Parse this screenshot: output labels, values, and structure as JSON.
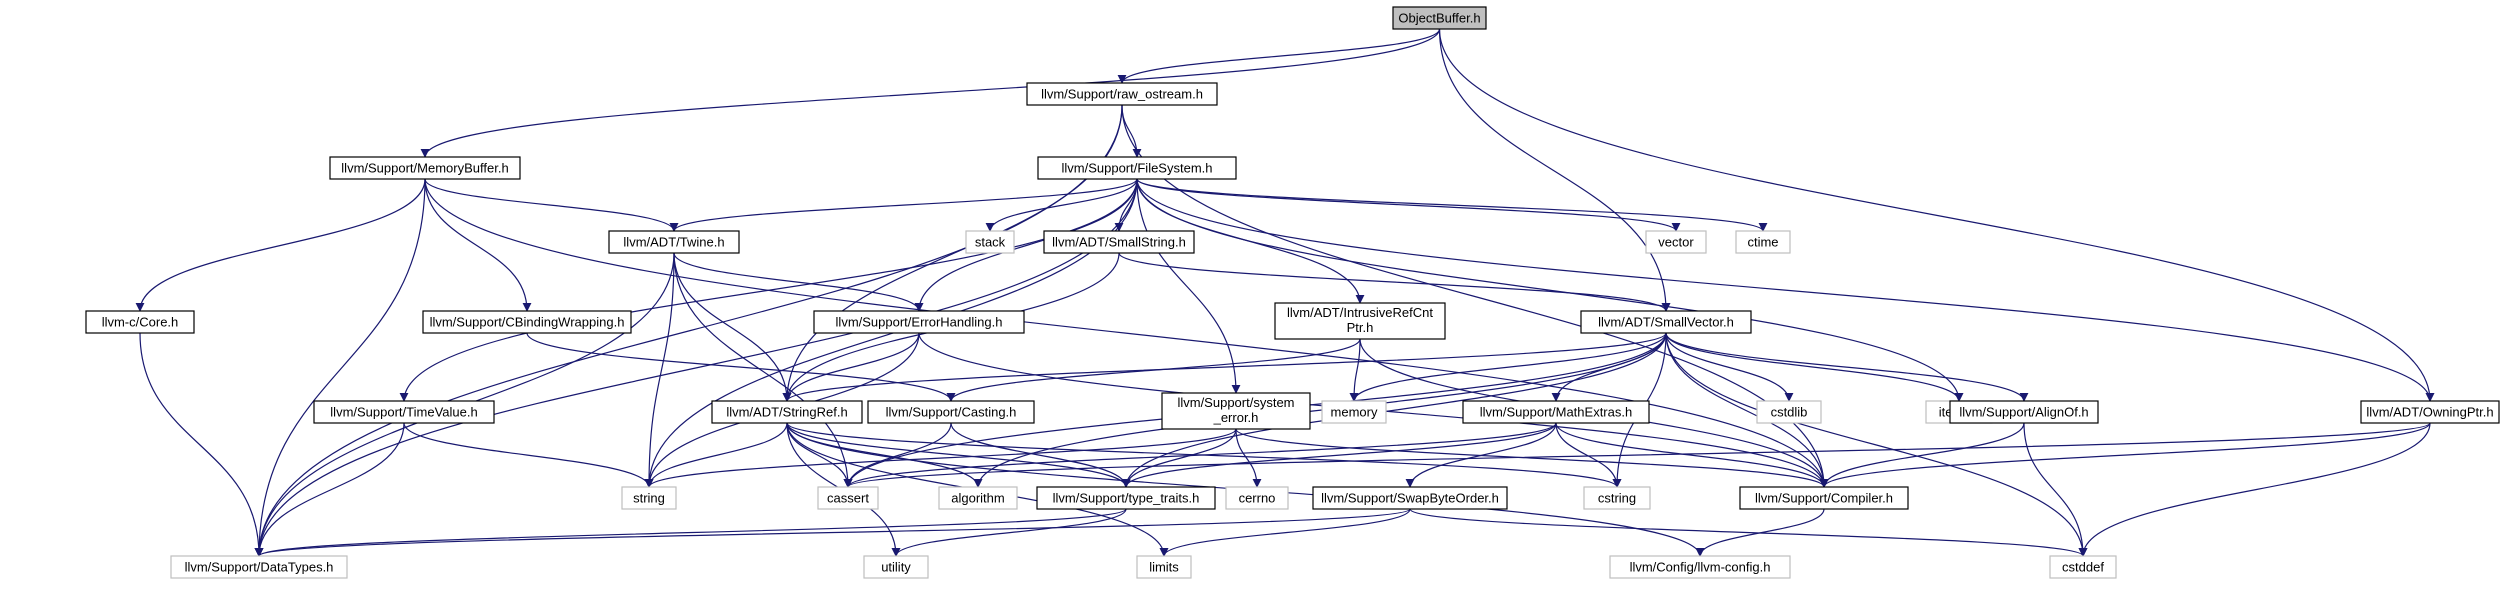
{
  "diagram": {
    "colors": {
      "edge": "#191970",
      "root_fill": "#bfbfbf",
      "node_fill": "#ffffff",
      "internal_border": "#000000",
      "external_border": "#bfbfbf"
    },
    "nodes": [
      {
        "id": "n0",
        "label": "ObjectBuffer.h",
        "kind": "root"
      },
      {
        "id": "n1",
        "label": "llvm/Support/raw_ostream.h",
        "kind": "internal"
      },
      {
        "id": "n2",
        "label": "llvm/Support/MemoryBuffer.h",
        "kind": "internal"
      },
      {
        "id": "n3",
        "label": "llvm/Support/FileSystem.h",
        "kind": "internal"
      },
      {
        "id": "n4",
        "label": "llvm/ADT/Twine.h",
        "kind": "internal"
      },
      {
        "id": "n5",
        "label": "stack",
        "kind": "external"
      },
      {
        "id": "n6",
        "label": "llvm/ADT/SmallString.h",
        "kind": "internal"
      },
      {
        "id": "n7",
        "label": "vector",
        "kind": "external"
      },
      {
        "id": "n8",
        "label": "ctime",
        "kind": "external"
      },
      {
        "id": "n9",
        "label": "llvm-c/Core.h",
        "kind": "internal"
      },
      {
        "id": "n10",
        "label": "llvm/Support/CBindingWrapping.h",
        "kind": "internal"
      },
      {
        "id": "n11",
        "label": "llvm/Support/ErrorHandling.h",
        "kind": "internal"
      },
      {
        "id": "n12",
        "label": "llvm/ADT/IntrusiveRefCnt Ptr.h",
        "kind": "internal"
      },
      {
        "id": "n13",
        "label": "llvm/ADT/SmallVector.h",
        "kind": "internal"
      },
      {
        "id": "n14",
        "label": "memory",
        "kind": "external"
      },
      {
        "id": "n15",
        "label": "cstdlib",
        "kind": "external"
      },
      {
        "id": "n16",
        "label": "iterator",
        "kind": "external"
      },
      {
        "id": "n17",
        "label": "llvm/Support/TimeValue.h",
        "kind": "internal"
      },
      {
        "id": "n18",
        "label": "llvm/ADT/StringRef.h",
        "kind": "internal"
      },
      {
        "id": "n19",
        "label": "llvm/Support/Casting.h",
        "kind": "internal"
      },
      {
        "id": "n20",
        "label": "llvm/Support/system _error.h",
        "kind": "internal"
      },
      {
        "id": "n21",
        "label": "llvm/Support/MathExtras.h",
        "kind": "internal"
      },
      {
        "id": "n22",
        "label": "llvm/Support/AlignOf.h",
        "kind": "internal"
      },
      {
        "id": "n23",
        "label": "llvm/ADT/OwningPtr.h",
        "kind": "internal"
      },
      {
        "id": "n24",
        "label": "string",
        "kind": "external"
      },
      {
        "id": "n25",
        "label": "cassert",
        "kind": "external"
      },
      {
        "id": "n26",
        "label": "algorithm",
        "kind": "external"
      },
      {
        "id": "n27",
        "label": "llvm/Support/type_traits.h",
        "kind": "internal"
      },
      {
        "id": "n28",
        "label": "cerrno",
        "kind": "external"
      },
      {
        "id": "n29",
        "label": "llvm/Support/SwapByteOrder.h",
        "kind": "internal"
      },
      {
        "id": "n30",
        "label": "cstring",
        "kind": "external"
      },
      {
        "id": "n31",
        "label": "llvm/Support/Compiler.h",
        "kind": "internal"
      },
      {
        "id": "n32",
        "label": "llvm/Support/DataTypes.h",
        "kind": "external"
      },
      {
        "id": "n33",
        "label": "utility",
        "kind": "external"
      },
      {
        "id": "n34",
        "label": "limits",
        "kind": "external"
      },
      {
        "id": "n35",
        "label": "llvm/Config/llvm-config.h",
        "kind": "external"
      },
      {
        "id": "n36",
        "label": "cstddef",
        "kind": "external"
      }
    ],
    "edges": [
      [
        "n0",
        "n1"
      ],
      [
        "n0",
        "n2"
      ],
      [
        "n0",
        "n13"
      ],
      [
        "n0",
        "n23"
      ],
      [
        "n1",
        "n32"
      ],
      [
        "n1",
        "n3"
      ],
      [
        "n1",
        "n18"
      ],
      [
        "n1",
        "n31"
      ],
      [
        "n2",
        "n4"
      ],
      [
        "n2",
        "n9"
      ],
      [
        "n2",
        "n10"
      ],
      [
        "n2",
        "n32"
      ],
      [
        "n2",
        "n31"
      ],
      [
        "n3",
        "n4"
      ],
      [
        "n3",
        "n5"
      ],
      [
        "n3",
        "n6"
      ],
      [
        "n3",
        "n7"
      ],
      [
        "n3",
        "n8"
      ],
      [
        "n3",
        "n11"
      ],
      [
        "n3",
        "n12"
      ],
      [
        "n3",
        "n17"
      ],
      [
        "n3",
        "n20"
      ],
      [
        "n3",
        "n24"
      ],
      [
        "n3",
        "n16"
      ],
      [
        "n3",
        "n23"
      ],
      [
        "n3",
        "n32"
      ],
      [
        "n4",
        "n18"
      ],
      [
        "n4",
        "n11"
      ],
      [
        "n4",
        "n24"
      ],
      [
        "n4",
        "n25"
      ],
      [
        "n4",
        "n32"
      ],
      [
        "n6",
        "n13"
      ],
      [
        "n6",
        "n18"
      ],
      [
        "n9",
        "n32"
      ],
      [
        "n10",
        "n19"
      ],
      [
        "n11",
        "n18"
      ],
      [
        "n11",
        "n24"
      ],
      [
        "n11",
        "n31"
      ],
      [
        "n12",
        "n14"
      ],
      [
        "n12",
        "n19"
      ],
      [
        "n12",
        "n31"
      ],
      [
        "n13",
        "n18"
      ],
      [
        "n13",
        "n14"
      ],
      [
        "n13",
        "n15"
      ],
      [
        "n13",
        "n16"
      ],
      [
        "n13",
        "n21"
      ],
      [
        "n13",
        "n22"
      ],
      [
        "n13",
        "n25"
      ],
      [
        "n13",
        "n26"
      ],
      [
        "n13",
        "n27"
      ],
      [
        "n13",
        "n30"
      ],
      [
        "n13",
        "n31"
      ],
      [
        "n13",
        "n36"
      ],
      [
        "n17",
        "n24"
      ],
      [
        "n17",
        "n32"
      ],
      [
        "n18",
        "n24"
      ],
      [
        "n18",
        "n25"
      ],
      [
        "n18",
        "n26"
      ],
      [
        "n18",
        "n27"
      ],
      [
        "n18",
        "n30"
      ],
      [
        "n18",
        "n33"
      ],
      [
        "n18",
        "n34"
      ],
      [
        "n18",
        "n35"
      ],
      [
        "n19",
        "n25"
      ],
      [
        "n19",
        "n27"
      ],
      [
        "n20",
        "n24"
      ],
      [
        "n20",
        "n27"
      ],
      [
        "n20",
        "n28"
      ],
      [
        "n20",
        "n31"
      ],
      [
        "n21",
        "n25"
      ],
      [
        "n21",
        "n29"
      ],
      [
        "n21",
        "n30"
      ],
      [
        "n21",
        "n31"
      ],
      [
        "n21",
        "n27"
      ],
      [
        "n22",
        "n31"
      ],
      [
        "n22",
        "n36"
      ],
      [
        "n23",
        "n25"
      ],
      [
        "n23",
        "n31"
      ],
      [
        "n23",
        "n36"
      ],
      [
        "n27",
        "n32"
      ],
      [
        "n27",
        "n33"
      ],
      [
        "n29",
        "n32"
      ],
      [
        "n29",
        "n34"
      ],
      [
        "n29",
        "n36"
      ],
      [
        "n31",
        "n35"
      ]
    ]
  }
}
